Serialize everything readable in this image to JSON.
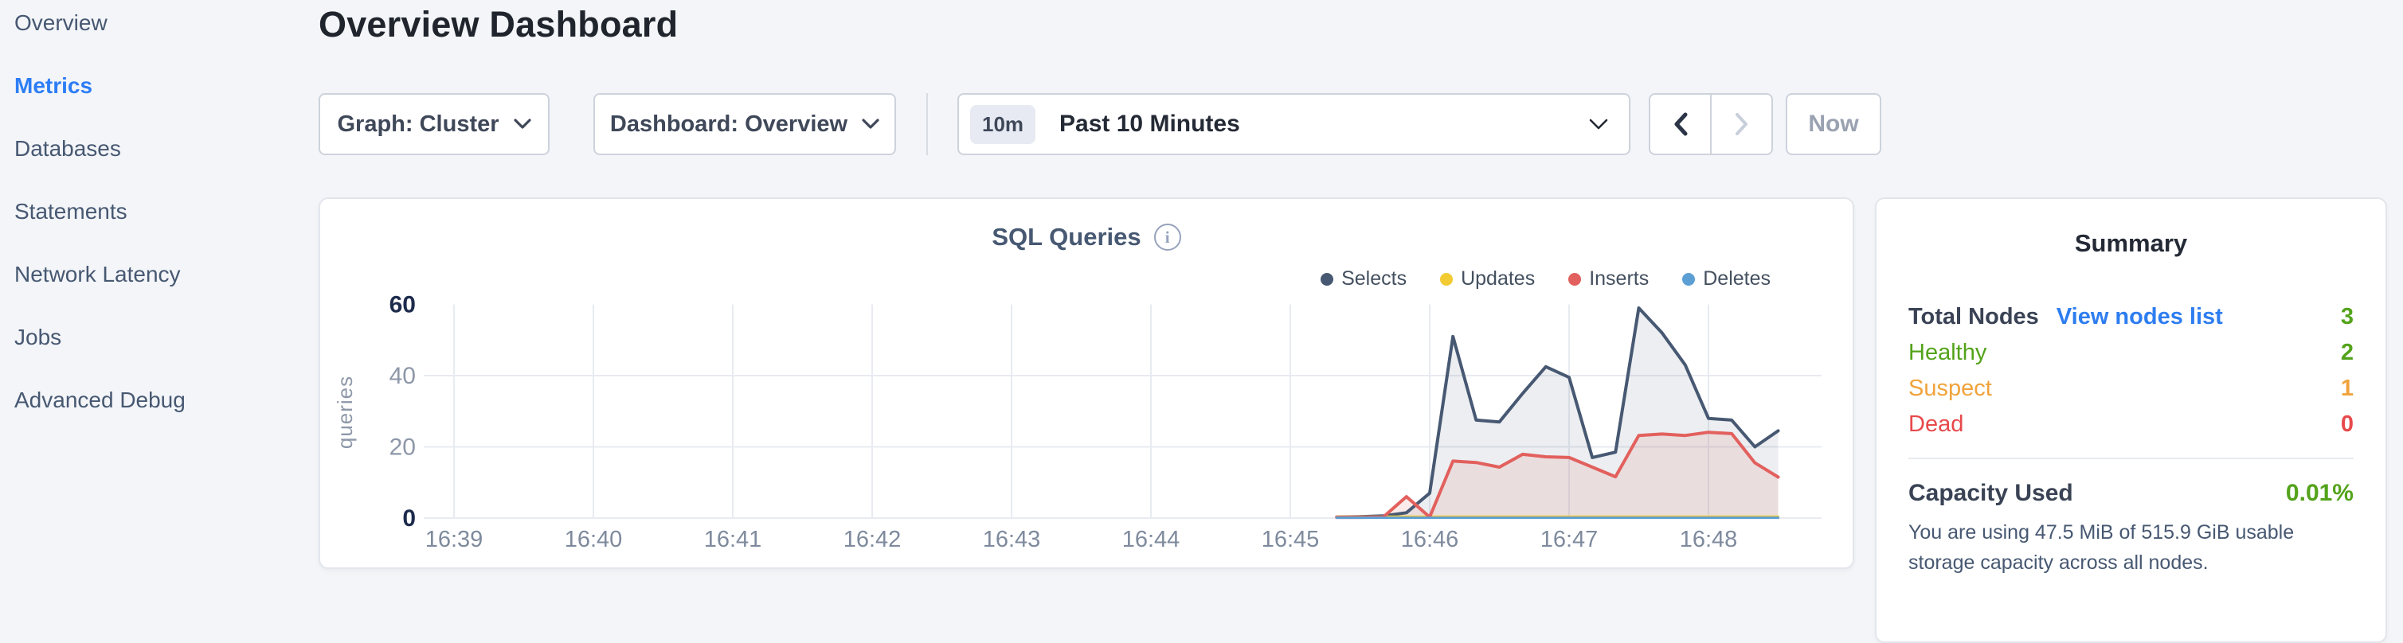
{
  "colors": {
    "accent_blue": "#2d7df6",
    "link_blue": "#2e7df0",
    "green": "#54a31b",
    "orange": "#f0a33b",
    "red": "#e7494b",
    "slate": "#475872",
    "grid": "#e8ebf1"
  },
  "sidebar": {
    "items": [
      {
        "label": "Overview",
        "active": false
      },
      {
        "label": "Metrics",
        "active": true
      },
      {
        "label": "Databases",
        "active": false
      },
      {
        "label": "Statements",
        "active": false
      },
      {
        "label": "Network Latency",
        "active": false
      },
      {
        "label": "Jobs",
        "active": false
      },
      {
        "label": "Advanced Debug",
        "active": false
      }
    ]
  },
  "header": {
    "title": "Overview Dashboard"
  },
  "toolbar": {
    "graph_label": "Graph: Cluster",
    "dashboard_label": "Dashboard: Overview",
    "time_badge": "10m",
    "time_label": "Past 10 Minutes",
    "now_label": "Now"
  },
  "chart": {
    "info_icon_glyph": "i"
  },
  "chart_data": {
    "type": "area",
    "title": "SQL Queries",
    "ylabel": "queries",
    "xlabel": "",
    "grid": true,
    "legend_position": "top-right",
    "ylim": [
      0,
      60
    ],
    "y_ticks": [
      0,
      20,
      40,
      60
    ],
    "x_ticks": [
      "16:39",
      "16:40",
      "16:41",
      "16:42",
      "16:43",
      "16:44",
      "16:45",
      "16:46",
      "16:47",
      "16:48"
    ],
    "x_axis_origin": "16:39:00",
    "x": [
      "16:45:20",
      "16:45:30",
      "16:45:40",
      "16:45:50",
      "16:46:00",
      "16:46:10",
      "16:46:20",
      "16:46:30",
      "16:46:40",
      "16:46:50",
      "16:47:00",
      "16:47:10",
      "16:47:20",
      "16:47:30",
      "16:47:40",
      "16:47:50",
      "16:48:00",
      "16:48:10",
      "16:48:20",
      "16:48:30"
    ],
    "series": [
      {
        "name": "Selects",
        "color": "#475872",
        "fill": "rgba(71,88,114,0.10)",
        "values": [
          0.3,
          0.4,
          0.6,
          1.5,
          7,
          51,
          27.5,
          27,
          35,
          42.5,
          39.5,
          17,
          18.5,
          59,
          52,
          43,
          28,
          27.5,
          20,
          24.5
        ]
      },
      {
        "name": "Updates",
        "color": "#f2ca32",
        "fill": "none",
        "values": [
          0.4,
          0.4,
          0.4,
          0.4,
          0.4,
          0.4,
          0.4,
          0.4,
          0.4,
          0.4,
          0.4,
          0.4,
          0.4,
          0.4,
          0.4,
          0.4,
          0.4,
          0.4,
          0.4,
          0.4
        ]
      },
      {
        "name": "Inserts",
        "color": "#e2605d",
        "fill": "rgba(226,96,93,0.12)",
        "values": [
          0.2,
          0.2,
          0.3,
          6,
          0.3,
          16,
          15.6,
          14.3,
          17.9,
          17.2,
          17,
          14.3,
          11.6,
          23.2,
          23.6,
          23.2,
          24.1,
          23.7,
          15.5,
          11.5
        ]
      },
      {
        "name": "Deletes",
        "color": "#5c9fd4",
        "fill": "none",
        "values": [
          0.1,
          0.1,
          0.1,
          0.1,
          0.1,
          0.1,
          0.1,
          0.1,
          0.1,
          0.1,
          0.1,
          0.1,
          0.1,
          0.1,
          0.1,
          0.1,
          0.1,
          0.1,
          0.1,
          0.1
        ]
      }
    ]
  },
  "summary": {
    "title": "Summary",
    "total_nodes_label": "Total Nodes",
    "view_nodes_label": "View nodes list",
    "total_nodes_value": "3",
    "node_rows": [
      {
        "label": "Healthy",
        "value": "2",
        "color": "#54a31b"
      },
      {
        "label": "Suspect",
        "value": "1",
        "color": "#f0a33b"
      },
      {
        "label": "Dead",
        "value": "0",
        "color": "#e7494b"
      }
    ],
    "capacity_label": "Capacity Used",
    "capacity_value": "0.01%",
    "capacity_description": "You are using 47.5 MiB of 515.9 GiB usable storage capacity across all nodes."
  }
}
